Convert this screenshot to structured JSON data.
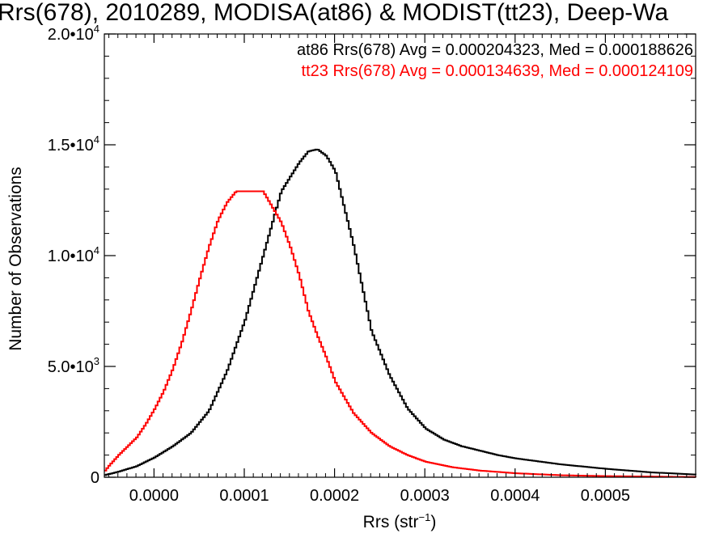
{
  "chart_data": {
    "type": "line",
    "title": "Rrs(678), 2010289, MODISA(at86) & MODIST(tt23), Deep-Wa",
    "xlabel_main": "Rrs (str",
    "xlabel_sup": "−1",
    "xlabel_tail": ")",
    "ylabel": "Number of Observations",
    "xlim": [
      -5.5e-05,
      0.0006
    ],
    "ylim": [
      0,
      20000
    ],
    "x_ticks": [
      {
        "value": 0.0,
        "label": "0.0000"
      },
      {
        "value": 0.0001,
        "label": "0.0001"
      },
      {
        "value": 0.0002,
        "label": "0.0002"
      },
      {
        "value": 0.0003,
        "label": "0.0003"
      },
      {
        "value": 0.0004,
        "label": "0.0004"
      },
      {
        "value": 0.0005,
        "label": "0.0005"
      }
    ],
    "y_ticks": [
      {
        "value": 0,
        "label": "0",
        "sup": ""
      },
      {
        "value": 5000,
        "label": "5.0•10",
        "sup": "3"
      },
      {
        "value": 10000,
        "label": "1.0•10",
        "sup": "4"
      },
      {
        "value": 15000,
        "label": "1.5•10",
        "sup": "4"
      },
      {
        "value": 20000,
        "label": "2.0•10",
        "sup": "4"
      }
    ],
    "legend_placement": "top-right",
    "series": [
      {
        "name": "at86 Rrs(678) Avg = 0.000204323, Med = 0.000188626",
        "color": "#000000",
        "x": [
          -5.5e-05,
          -4e-05,
          -2e-05,
          0.0,
          2e-05,
          4e-05,
          6e-05,
          8e-05,
          0.0001,
          0.00012,
          0.00014,
          0.00016,
          0.00017,
          0.00018,
          0.00019,
          0.0002,
          0.00022,
          0.00024,
          0.00026,
          0.00028,
          0.0003,
          0.00032,
          0.00034,
          0.00036,
          0.00038,
          0.0004,
          0.00045,
          0.0005,
          0.00055,
          0.0006
        ],
        "y": [
          100,
          250,
          500,
          900,
          1400,
          2000,
          3000,
          4800,
          7100,
          10000,
          12900,
          14200,
          14700,
          14800,
          14500,
          13800,
          10500,
          6600,
          4600,
          3100,
          2200,
          1700,
          1400,
          1200,
          1000,
          850,
          580,
          380,
          220,
          120
        ]
      },
      {
        "name": "tt23 Rrs(678) Avg = 0.000134639, Med = 0.000124109",
        "color": "#ff0000",
        "x": [
          -5.5e-05,
          -5e-05,
          -4e-05,
          -3e-05,
          -2e-05,
          -1e-05,
          0.0,
          1e-05,
          2e-05,
          3e-05,
          4e-05,
          5e-05,
          6e-05,
          7e-05,
          8e-05,
          9e-05,
          0.0001,
          0.00011,
          0.00012,
          0.00013,
          0.00014,
          0.00015,
          0.00016,
          0.00017,
          0.00018,
          0.00019,
          0.0002,
          0.00022,
          0.00024,
          0.00026,
          0.00028,
          0.0003,
          0.00033,
          0.00036,
          0.0004,
          0.00045,
          0.0005,
          0.00055,
          0.0006
        ],
        "y": [
          300,
          550,
          1000,
          1400,
          1800,
          2400,
          3100,
          3900,
          4900,
          6100,
          7500,
          9000,
          10400,
          11600,
          12400,
          12900,
          12900,
          12900,
          12900,
          12200,
          11500,
          10400,
          9100,
          7500,
          6400,
          5400,
          4300,
          2900,
          2000,
          1400,
          1000,
          700,
          450,
          300,
          180,
          90,
          50,
          30,
          10
        ]
      }
    ]
  }
}
